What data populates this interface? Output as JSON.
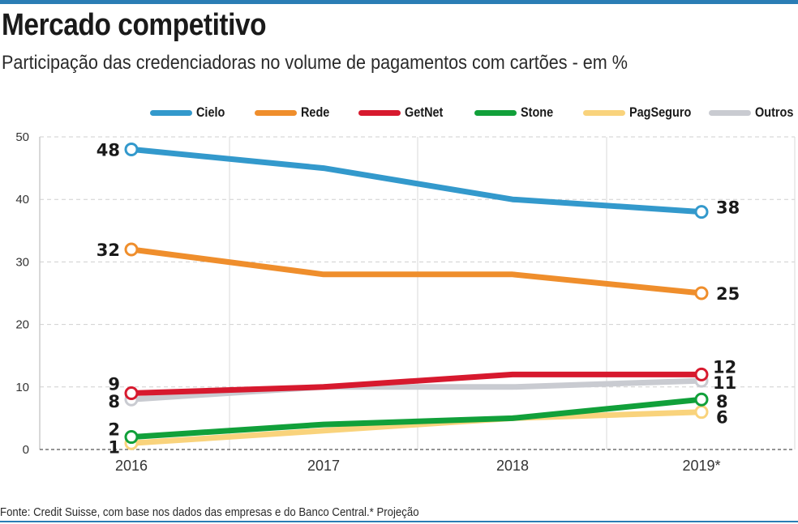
{
  "header": {
    "title": "Mercado competitivo",
    "subtitle": "Participação das credenciadoras no volume de pagamentos com cartões - em %"
  },
  "footer": {
    "source": "Fonte: Credit Suisse, com base nos dados das empresas e do Banco Central.* Projeção"
  },
  "colors": {
    "brand_bar": "#2a7db5"
  },
  "chart_data": {
    "type": "line",
    "title": "Mercado competitivo",
    "subtitle": "Participação das credenciadoras no volume de pagamentos com cartões - em %",
    "xlabel": "",
    "ylabel": "%",
    "categories": [
      "2016",
      "2017",
      "2018",
      "2019*"
    ],
    "ylim": [
      0,
      50
    ],
    "yticks": [
      0,
      10,
      20,
      30,
      40,
      50
    ],
    "grid": true,
    "legend_position": "top",
    "series": [
      {
        "name": "Cielo",
        "color": "#3399cc",
        "values": [
          48,
          45,
          40,
          38
        ],
        "start_label": "48",
        "end_label": "38"
      },
      {
        "name": "Rede",
        "color": "#ef8e2c",
        "values": [
          32,
          28,
          28,
          25
        ],
        "start_label": "32",
        "end_label": "25"
      },
      {
        "name": "GetNet",
        "color": "#d7192e",
        "values": [
          9,
          10,
          12,
          12
        ],
        "start_label": "9",
        "end_label": "12"
      },
      {
        "name": "Stone",
        "color": "#11a03a",
        "values": [
          2,
          4,
          5,
          8
        ],
        "start_label": "2",
        "end_label": "8"
      },
      {
        "name": "PagSeguro",
        "color": "#f9d37c",
        "values": [
          1,
          3,
          5,
          6
        ],
        "start_label": "1",
        "end_label": "6"
      },
      {
        "name": "Outros",
        "color": "#c9cbd1",
        "values": [
          8,
          10,
          10,
          11
        ],
        "start_label": "8",
        "end_label": "11"
      }
    ],
    "annotations": [
      "* Projeção"
    ]
  }
}
